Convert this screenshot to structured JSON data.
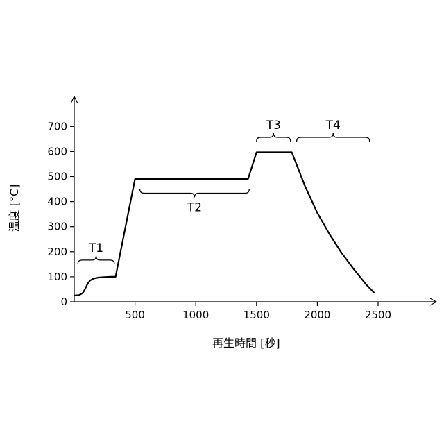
{
  "chart_data": {
    "type": "line",
    "title": "",
    "xlabel": "再生時間 [秒]",
    "ylabel": "温度 [°C]",
    "xlim": [
      0,
      3000
    ],
    "ylim": [
      0,
      800
    ],
    "xticks": [
      500,
      1000,
      1500,
      2000,
      2500
    ],
    "yticks": [
      0,
      100,
      200,
      300,
      400,
      500,
      600,
      700
    ],
    "grid": false,
    "legend": "none",
    "series": [
      {
        "x": [
          0,
          40,
          70,
          90,
          110,
          130,
          160,
          200,
          250,
          300,
          340,
          500,
          1430,
          1500,
          1790,
          1900,
          2000,
          2100,
          2200,
          2300,
          2400,
          2470
        ],
        "values": [
          25,
          27,
          35,
          52,
          72,
          85,
          93,
          97,
          99,
          100,
          100,
          490,
          490,
          597,
          597,
          460,
          355,
          270,
          195,
          130,
          70,
          35
        ]
      }
    ],
    "phases": [
      {
        "label": "T1",
        "x_start": 30,
        "x_end": 330,
        "y": 150
      },
      {
        "label": "T2",
        "x_start": 540,
        "x_end": 1440,
        "y": 450
      },
      {
        "label": "T3",
        "x_start": 1500,
        "x_end": 1780,
        "y": 640
      },
      {
        "label": "T4",
        "x_start": 1830,
        "x_end": 2430,
        "y": 640
      }
    ]
  }
}
